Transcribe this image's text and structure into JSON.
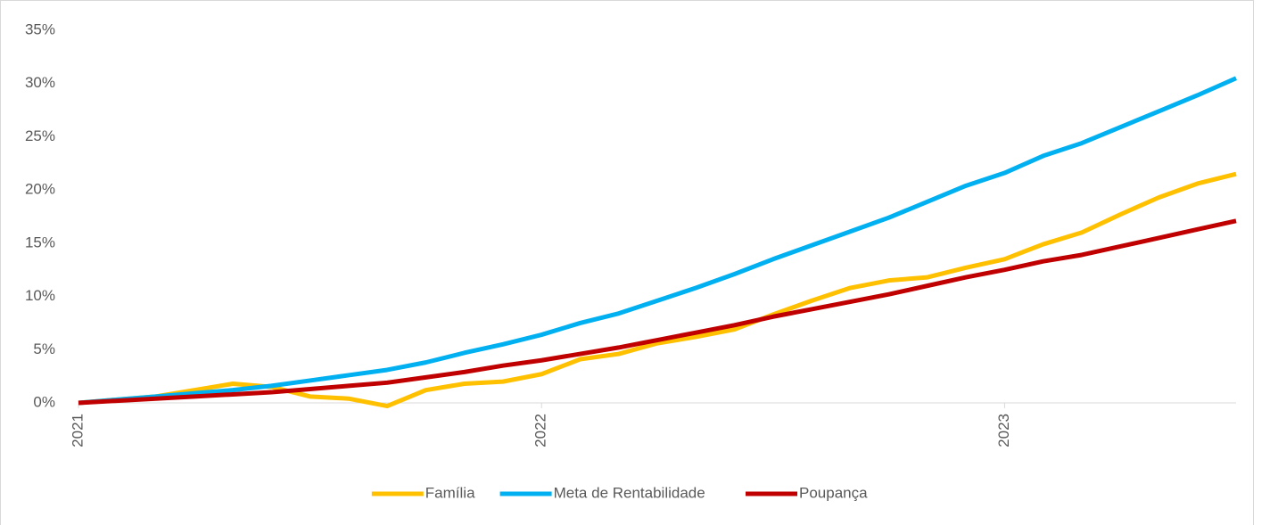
{
  "chart_data": {
    "type": "line",
    "x": [
      0,
      1,
      2,
      3,
      4,
      5,
      6,
      7,
      8,
      9,
      10,
      11,
      12,
      13,
      14,
      15,
      16,
      17,
      18,
      19,
      20,
      21,
      22,
      23,
      24,
      25,
      26,
      27,
      28,
      29,
      30
    ],
    "xlim": [
      0,
      30
    ],
    "xticks": [
      {
        "value": 0,
        "label": "2021"
      },
      {
        "value": 12,
        "label": "2022"
      },
      {
        "value": 24,
        "label": "2023"
      }
    ],
    "ylim": [
      0,
      35
    ],
    "yticks": [
      {
        "value": 0,
        "label": "0%"
      },
      {
        "value": 5,
        "label": "5%"
      },
      {
        "value": 10,
        "label": "10%"
      },
      {
        "value": 15,
        "label": "15%"
      },
      {
        "value": 20,
        "label": "20%"
      },
      {
        "value": 25,
        "label": "25%"
      },
      {
        "value": 30,
        "label": "30%"
      },
      {
        "value": 35,
        "label": "35%"
      }
    ],
    "grid": false,
    "legend": "bottom",
    "series": [
      {
        "name": "Família",
        "color": "#FFC000",
        "values": [
          0,
          0.3,
          0.6,
          1.2,
          1.8,
          1.5,
          0.6,
          0.4,
          -0.3,
          1.2,
          1.8,
          2.0,
          2.7,
          4.1,
          4.6,
          5.6,
          6.2,
          6.9,
          8.3,
          9.6,
          10.8,
          11.5,
          11.8,
          12.7,
          13.5,
          14.9,
          16.0,
          17.7,
          19.3,
          20.6,
          21.5
        ]
      },
      {
        "name": "Meta de Rentabilidade",
        "color": "#00B0F0",
        "values": [
          0,
          0.3,
          0.6,
          0.9,
          1.2,
          1.6,
          2.1,
          2.6,
          3.1,
          3.8,
          4.7,
          5.5,
          6.4,
          7.5,
          8.4,
          9.6,
          10.8,
          12.1,
          13.5,
          14.8,
          16.1,
          17.4,
          18.9,
          20.4,
          21.6,
          23.2,
          24.4,
          25.9,
          27.4,
          28.9,
          30.5
        ]
      },
      {
        "name": "Poupança",
        "color": "#C00000",
        "values": [
          0,
          0.2,
          0.4,
          0.6,
          0.8,
          1.0,
          1.3,
          1.6,
          1.9,
          2.4,
          2.9,
          3.5,
          4.0,
          4.6,
          5.2,
          5.9,
          6.6,
          7.3,
          8.1,
          8.8,
          9.5,
          10.2,
          11.0,
          11.8,
          12.5,
          13.3,
          13.9,
          14.7,
          15.5,
          16.3,
          17.1
        ]
      }
    ]
  }
}
